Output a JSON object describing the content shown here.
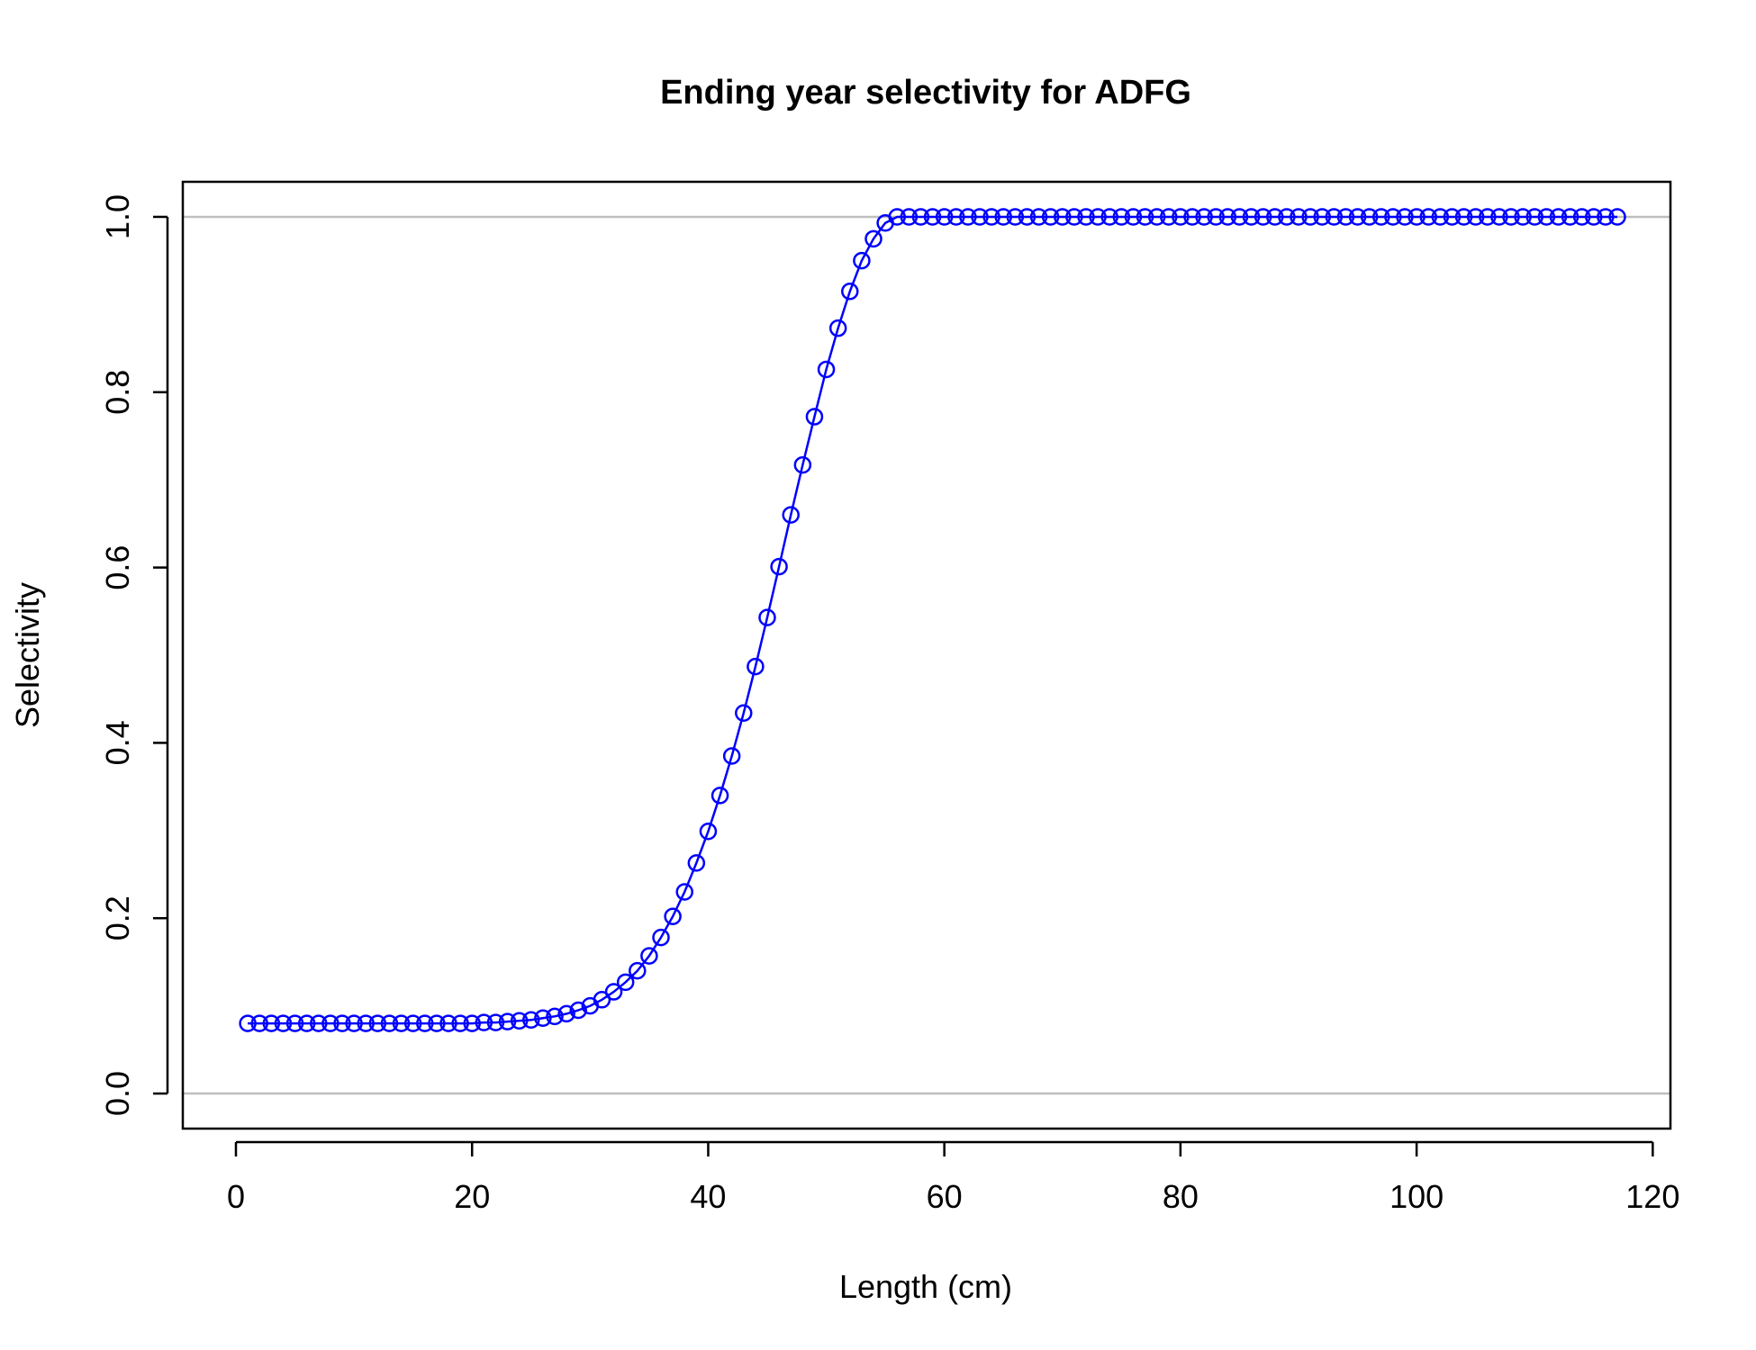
{
  "chart_data": {
    "type": "line",
    "title": "Ending year selectivity for ADFG",
    "xlabel": "Length (cm)",
    "ylabel": "Selectivity",
    "xlim": [
      -4.5,
      121.5
    ],
    "ylim": [
      -0.04,
      1.04
    ],
    "x_ticks": [
      0,
      20,
      40,
      60,
      80,
      100,
      120
    ],
    "y_ticks": [
      0.0,
      0.2,
      0.4,
      0.6,
      0.8,
      1.0
    ],
    "x_tick_labels": [
      "0",
      "20",
      "40",
      "60",
      "80",
      "100",
      "120"
    ],
    "y_tick_labels": [
      "0.0",
      "0.2",
      "0.4",
      "0.6",
      "0.8",
      "1.0"
    ],
    "reference_lines": [
      0,
      1
    ],
    "grid": false,
    "colors": {
      "series": "#0000ff",
      "reference": "#bebebe",
      "axis": "#000000"
    },
    "series": [
      {
        "marker": "open-circle",
        "x": [
          1,
          2,
          3,
          4,
          5,
          6,
          7,
          8,
          9,
          10,
          11,
          12,
          13,
          14,
          15,
          16,
          17,
          18,
          19,
          20,
          21,
          22,
          23,
          24,
          25,
          26,
          27,
          28,
          29,
          30,
          31,
          32,
          33,
          34,
          35,
          36,
          37,
          38,
          39,
          40,
          41,
          42,
          43,
          44,
          45,
          46,
          47,
          48,
          49,
          50,
          51,
          52,
          53,
          54,
          55,
          56,
          57,
          58,
          59,
          60,
          61,
          62,
          63,
          64,
          65,
          66,
          67,
          68,
          69,
          70,
          71,
          72,
          73,
          74,
          75,
          76,
          77,
          78,
          79,
          80,
          81,
          82,
          83,
          84,
          85,
          86,
          87,
          88,
          89,
          90,
          91,
          92,
          93,
          94,
          95,
          96,
          97,
          98,
          99,
          100,
          101,
          102,
          103,
          104,
          105,
          106,
          107,
          108,
          109,
          110,
          111,
          112,
          113,
          114,
          115,
          116,
          117
        ],
        "y": [
          0.08,
          0.08,
          0.08,
          0.08,
          0.08,
          0.08,
          0.08,
          0.08,
          0.08,
          0.08,
          0.08,
          0.08,
          0.08,
          0.08,
          0.08,
          0.08,
          0.08,
          0.08,
          0.08,
          0.08,
          0.081,
          0.081,
          0.082,
          0.083,
          0.084,
          0.086,
          0.088,
          0.091,
          0.095,
          0.1,
          0.107,
          0.116,
          0.127,
          0.14,
          0.157,
          0.178,
          0.202,
          0.23,
          0.263,
          0.299,
          0.34,
          0.385,
          0.434,
          0.487,
          0.543,
          0.601,
          0.66,
          0.717,
          0.772,
          0.826,
          0.873,
          0.915,
          0.95,
          0.975,
          0.993,
          1.0,
          1.0,
          1.0,
          1.0,
          1.0,
          1.0,
          1.0,
          1.0,
          1.0,
          1.0,
          1.0,
          1.0,
          1.0,
          1.0,
          1.0,
          1.0,
          1.0,
          1.0,
          1.0,
          1.0,
          1.0,
          1.0,
          1.0,
          1.0,
          1.0,
          1.0,
          1.0,
          1.0,
          1.0,
          1.0,
          1.0,
          1.0,
          1.0,
          1.0,
          1.0,
          1.0,
          1.0,
          1.0,
          1.0,
          1.0,
          1.0,
          1.0,
          1.0,
          1.0,
          1.0,
          1.0,
          1.0,
          1.0,
          1.0,
          1.0,
          1.0,
          1.0,
          1.0,
          1.0,
          1.0,
          1.0,
          1.0,
          1.0,
          1.0,
          1.0,
          1.0,
          1.0
        ]
      }
    ]
  }
}
